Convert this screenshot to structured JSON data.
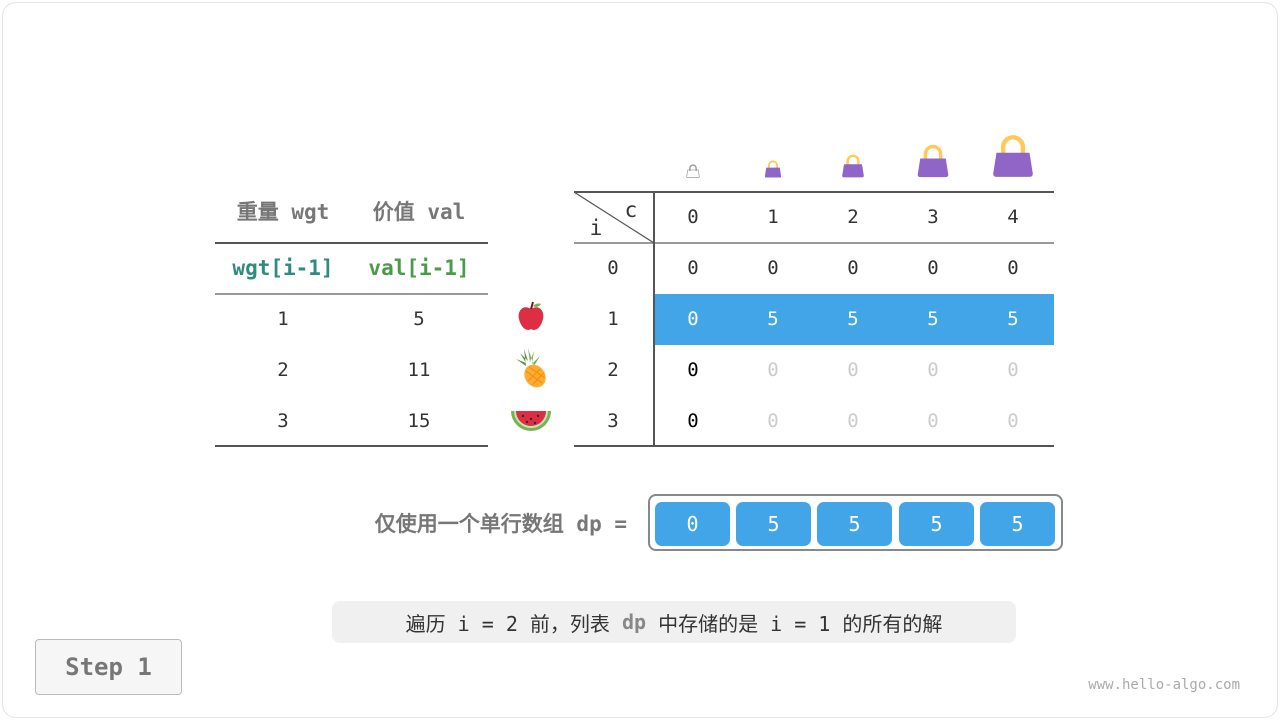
{
  "left_table": {
    "headers": [
      "重量 wgt",
      "价值 val"
    ],
    "subheaders": [
      "wgt[i-1]",
      "val[i-1]"
    ],
    "rows": [
      [
        "1",
        "5"
      ],
      [
        "2",
        "11"
      ],
      [
        "3",
        "15"
      ]
    ],
    "items": [
      "apple-icon",
      "pineapple-icon",
      "watermelon-icon"
    ]
  },
  "dp_table": {
    "corner_c": "c",
    "corner_i": "i",
    "capacities": [
      "0",
      "1",
      "2",
      "3",
      "4"
    ],
    "row_labels": [
      "0",
      "1",
      "2",
      "3"
    ],
    "rows": [
      [
        "0",
        "0",
        "0",
        "0",
        "0"
      ],
      [
        "0",
        "5",
        "5",
        "5",
        "5"
      ],
      [
        "0",
        "0",
        "0",
        "0",
        "0"
      ],
      [
        "0",
        "0",
        "0",
        "0",
        "0"
      ]
    ],
    "highlight_row": 1,
    "highlight_color": "#42a5e8",
    "bag_icon": "handbag-icon"
  },
  "dp_array": {
    "label": "仅使用一个单行数组 dp =",
    "values": [
      "0",
      "5",
      "5",
      "5",
      "5"
    ]
  },
  "caption": {
    "pre": "遍历 i = 2 前，列表 ",
    "code": "dp",
    "post": " 中存储的是 i = 1 的所有的解"
  },
  "step_button": "Step 1",
  "watermark": "www.hello-algo.com"
}
